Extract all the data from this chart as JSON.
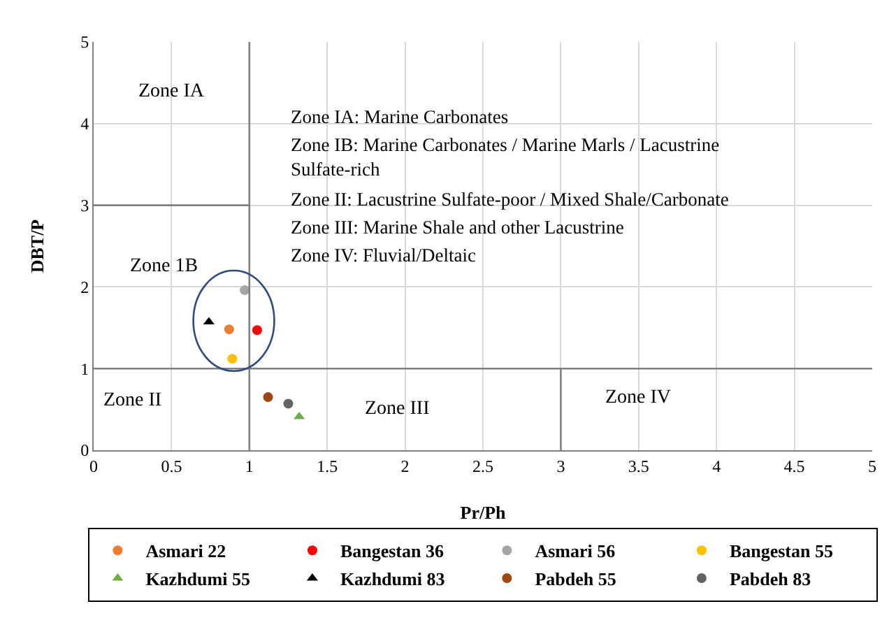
{
  "chart_data": {
    "type": "scatter",
    "xlabel": "Pr/Ph",
    "ylabel": "DBT/P",
    "xlim": [
      0,
      5
    ],
    "ylim": [
      0,
      5
    ],
    "xticks": [
      0,
      0.5,
      1,
      1.5,
      2,
      2.5,
      3,
      3.5,
      4,
      4.5,
      5
    ],
    "yticks": [
      0,
      1,
      2,
      3,
      4,
      5
    ],
    "grid": true,
    "legend": "bottom",
    "marker": "circle",
    "series": [
      {
        "name": "Asmari 22",
        "color": "#ed7d31",
        "x": [
          0.87
        ],
        "values": [
          1.48
        ]
      },
      {
        "name": "Bangestan 36",
        "color": "#ff0000",
        "x": [
          1.05
        ],
        "values": [
          1.47
        ]
      },
      {
        "name": "Asmari 56",
        "color": "#a5a5a5",
        "x": [
          0.97
        ],
        "values": [
          1.96
        ]
      },
      {
        "name": "Bangestan 55",
        "color": "#ffc000",
        "x": [
          0.89
        ],
        "values": [
          1.12
        ]
      },
      {
        "name": "Kazhdumi 55",
        "color": "#70ad47",
        "x": [
          1.32
        ],
        "values": [
          0.41
        ],
        "marker": "triangle"
      },
      {
        "name": "Kazhdumi 83",
        "color": "#000000",
        "x": [
          0.74
        ],
        "values": [
          1.57
        ],
        "marker": "triangle"
      },
      {
        "name": "Pabdeh 55",
        "color": "#9e480e",
        "x": [
          1.12
        ],
        "values": [
          0.65
        ]
      },
      {
        "name": "Pabdeh 83",
        "color": "#636363",
        "x": [
          1.25
        ],
        "values": [
          0.57
        ]
      },
      {
        "type": "line",
        "color": "#808080",
        "x": [
          0,
          1
        ],
        "values": [
          3,
          3
        ],
        "marker": "none"
      },
      {
        "type": "line",
        "color": "#808080",
        "x": [
          3,
          3
        ],
        "values": [
          0,
          1
        ],
        "marker": "none"
      },
      {
        "type": "line",
        "color": "#808080",
        "x": [
          1,
          1
        ],
        "values": [
          0,
          5
        ],
        "marker": "none"
      },
      {
        "type": "line",
        "color": "#808080",
        "x": [
          0,
          5
        ],
        "values": [
          1,
          1
        ],
        "marker": "none"
      }
    ],
    "annotations": [
      "Zone IA",
      "Zone 1B",
      "Zone II",
      "Zone III",
      "Zone IV",
      "Zone IA: Marine Carbonates",
      "Zone IB: Marine Carbonates / Marine Marls / Lacustrine Sulfate-rich",
      "Zone II: Lacustrine Sulfate-poor / Mixed Shale/Carbonate",
      "Zone III: Marine Shale and other Lacustrine",
      "Zone IV: Fluvial/Deltaic"
    ]
  }
}
